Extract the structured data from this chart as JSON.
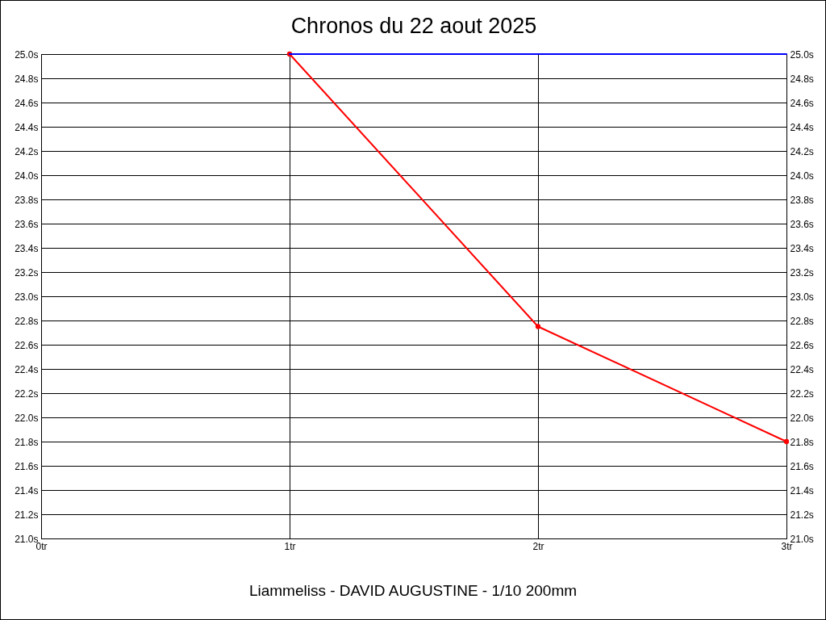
{
  "chart_data": {
    "type": "line",
    "title": "Chronos du 22 aout 2025",
    "annotations": [
      "Liammeliss - DAVID AUGUSTINE - 1/10 200mm"
    ],
    "series": [
      {
        "color": "#ff0000",
        "x": [
          1,
          2,
          3
        ],
        "values": [
          25.0,
          22.75,
          21.8
        ],
        "marker": "circle"
      },
      {
        "color": "#0000ff",
        "x": [
          1,
          3
        ],
        "values": [
          25.0,
          25.0
        ],
        "marker": "none"
      }
    ],
    "xlim": [
      0,
      3
    ],
    "xticks": [
      {
        "value": 0,
        "label": "0tr"
      },
      {
        "value": 1,
        "label": "1tr"
      },
      {
        "value": 2,
        "label": "2tr"
      },
      {
        "value": 3,
        "label": "3tr"
      }
    ],
    "ylim": [
      21,
      25
    ],
    "yticks": [
      {
        "value": 21,
        "label": "21.0s"
      },
      {
        "value": 21.2,
        "label": "21.2s"
      },
      {
        "value": 21.4,
        "label": "21.4s"
      },
      {
        "value": 21.6,
        "label": "21.6s"
      },
      {
        "value": 21.8,
        "label": "21.8s"
      },
      {
        "value": 22,
        "label": "22.0s"
      },
      {
        "value": 22.2,
        "label": "22.2s"
      },
      {
        "value": 22.4,
        "label": "22.4s"
      },
      {
        "value": 22.6,
        "label": "22.6s"
      },
      {
        "value": 22.8,
        "label": "22.8s"
      },
      {
        "value": 23,
        "label": "23.0s"
      },
      {
        "value": 23.2,
        "label": "23.2s"
      },
      {
        "value": 23.4,
        "label": "23.4s"
      },
      {
        "value": 23.6,
        "label": "23.6s"
      },
      {
        "value": 23.8,
        "label": "23.8s"
      },
      {
        "value": 24,
        "label": "24.0s"
      },
      {
        "value": 24.2,
        "label": "24.2s"
      },
      {
        "value": 24.4,
        "label": "24.4s"
      },
      {
        "value": 24.6,
        "label": "24.6s"
      },
      {
        "value": 24.8,
        "label": "24.8s"
      },
      {
        "value": 25,
        "label": "25.0s"
      }
    ],
    "y2lim": [
      21,
      25
    ],
    "y2ticks": [
      {
        "value": 21,
        "label": "21.0s"
      },
      {
        "value": 21.2,
        "label": "21.2s"
      },
      {
        "value": 21.4,
        "label": "21.4s"
      },
      {
        "value": 21.6,
        "label": "21.6s"
      },
      {
        "value": 21.8,
        "label": "21.8s"
      },
      {
        "value": 22,
        "label": "22.0s"
      },
      {
        "value": 22.2,
        "label": "22.2s"
      },
      {
        "value": 22.4,
        "label": "22.4s"
      },
      {
        "value": 22.6,
        "label": "22.6s"
      },
      {
        "value": 22.8,
        "label": "22.8s"
      },
      {
        "value": 23,
        "label": "23.0s"
      },
      {
        "value": 23.2,
        "label": "23.2s"
      },
      {
        "value": 23.4,
        "label": "23.4s"
      },
      {
        "value": 23.6,
        "label": "23.6s"
      },
      {
        "value": 23.8,
        "label": "23.8s"
      },
      {
        "value": 24,
        "label": "24.0s"
      },
      {
        "value": 24.2,
        "label": "24.2s"
      },
      {
        "value": 24.4,
        "label": "24.4s"
      },
      {
        "value": 24.6,
        "label": "24.6s"
      },
      {
        "value": 24.8,
        "label": "24.8s"
      },
      {
        "value": 25,
        "label": "25.0s"
      }
    ],
    "grid": true
  }
}
